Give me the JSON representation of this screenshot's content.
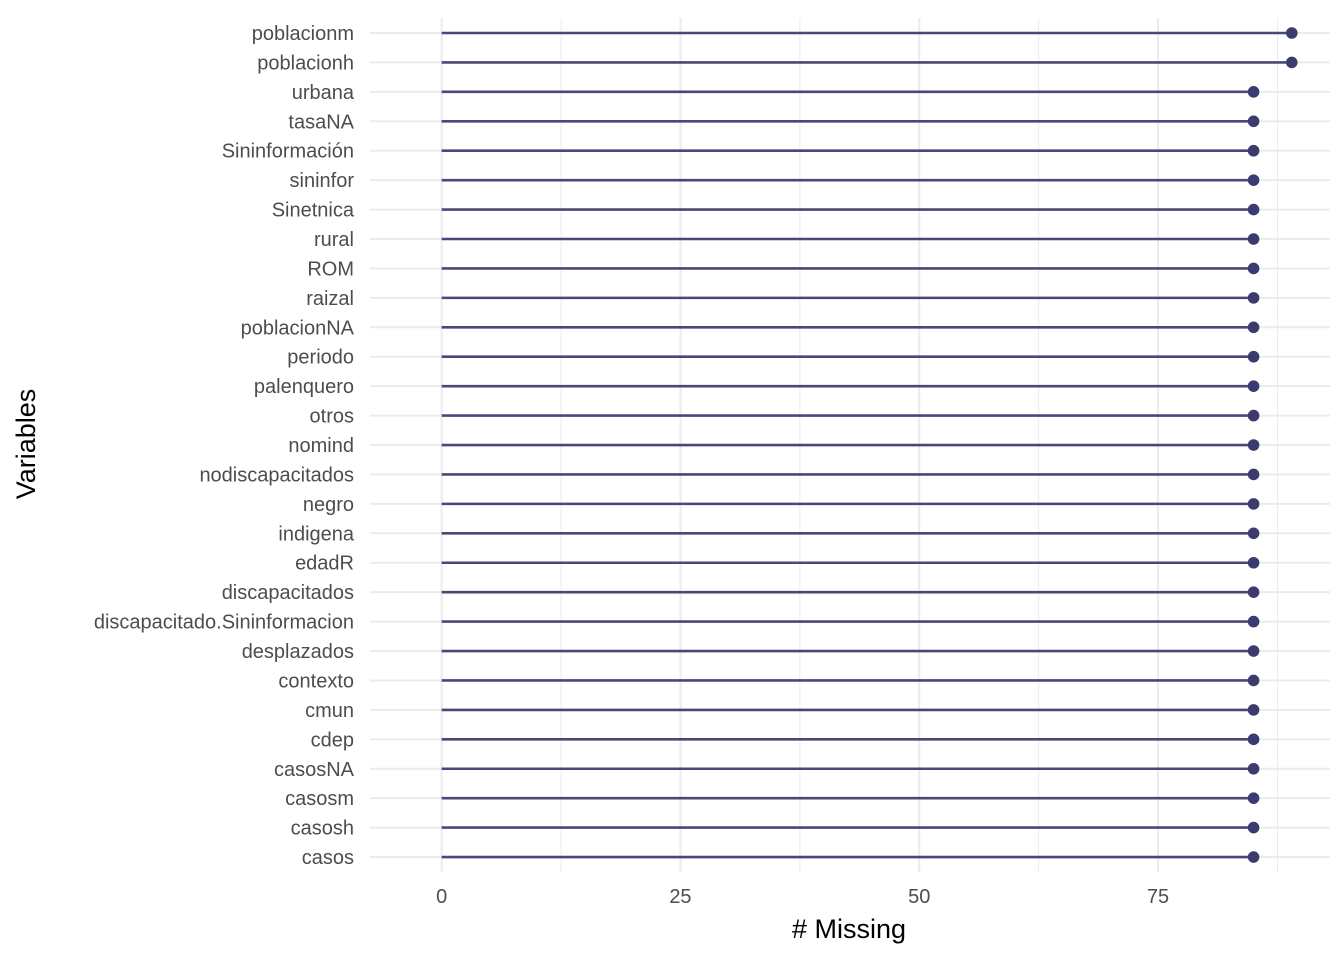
{
  "chart_data": {
    "type": "lollipop",
    "title": "",
    "xlabel": "# Missing",
    "ylabel": "Variables",
    "xlim": [
      -7.5,
      93
    ],
    "x_ticks": [
      0,
      25,
      50,
      75
    ],
    "x_minor_ticks": [
      12.5,
      37.5,
      62.5,
      87.5
    ],
    "grid": true,
    "colors": {
      "segment": "#484878",
      "point": "#3b3b70",
      "grid": "#ebebeb",
      "tick_text": "#4d4d4d",
      "axis_title": "#000000"
    },
    "categories": [
      "poblacionm",
      "poblacionh",
      "urbana",
      "tasaNA",
      "Sininformación",
      "sininfor",
      "Sinetnica",
      "rural",
      "ROM",
      "raizal",
      "poblacionNA",
      "periodo",
      "palenquero",
      "otros",
      "nomind",
      "nodiscapacitados",
      "negro",
      "indigena",
      "edadR",
      "discapacitados",
      "discapacitado.Sininformacion",
      "desplazados",
      "contexto",
      "cmun",
      "cdep",
      "casosNA",
      "casosm",
      "casosh",
      "casos"
    ],
    "values": [
      89,
      89,
      85,
      85,
      85,
      85,
      85,
      85,
      85,
      85,
      85,
      85,
      85,
      85,
      85,
      85,
      85,
      85,
      85,
      85,
      85,
      85,
      85,
      85,
      85,
      85,
      85,
      85,
      85
    ]
  }
}
